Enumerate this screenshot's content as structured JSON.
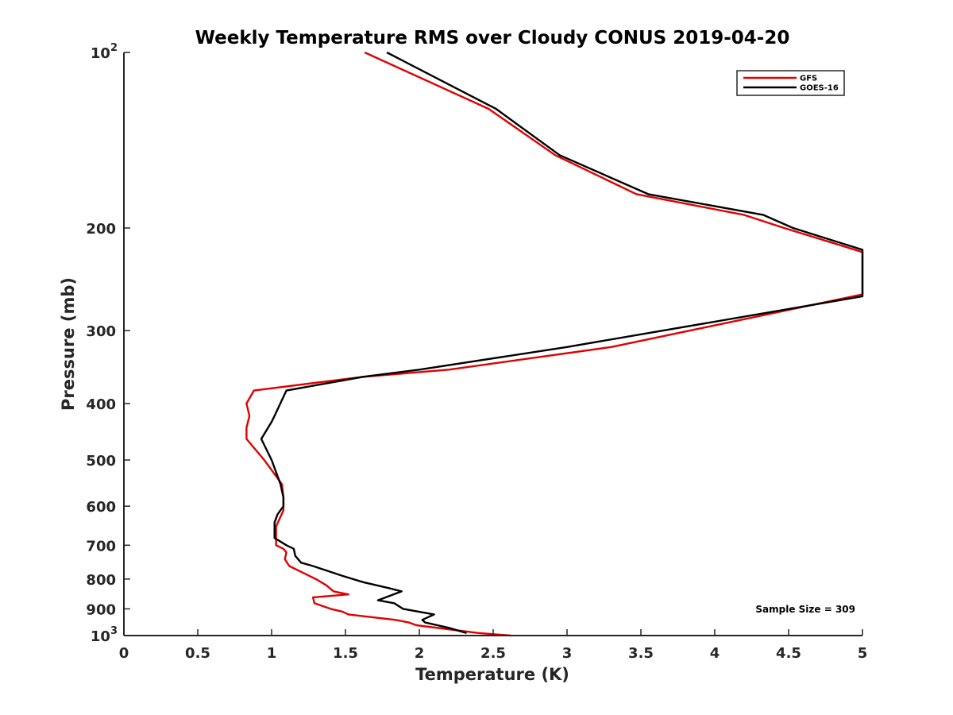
{
  "chart_data": {
    "type": "line",
    "title": "Weekly Temperature RMS over Cloudy CONUS 2019-04-20",
    "xlabel": "Temperature (K)",
    "ylabel": "Pressure (mb)",
    "xlim": [
      0,
      5
    ],
    "ylim": [
      100,
      1000
    ],
    "y_scale": "log",
    "y_reversed": true,
    "grid": false,
    "legend_position": "top-right",
    "x_ticks": [
      {
        "value": 0,
        "label": "0"
      },
      {
        "value": 0.5,
        "label": "0.5"
      },
      {
        "value": 1,
        "label": "1"
      },
      {
        "value": 1.5,
        "label": "1.5"
      },
      {
        "value": 2,
        "label": "2"
      },
      {
        "value": 2.5,
        "label": "2.5"
      },
      {
        "value": 3,
        "label": "3"
      },
      {
        "value": 3.5,
        "label": "3.5"
      },
      {
        "value": 4,
        "label": "4"
      },
      {
        "value": 4.5,
        "label": "4.5"
      },
      {
        "value": 5,
        "label": "5"
      }
    ],
    "y_ticks": [
      {
        "value": 100,
        "base": "10",
        "exp": "2"
      },
      {
        "value": 200,
        "label": "200"
      },
      {
        "value": 300,
        "label": "300"
      },
      {
        "value": 400,
        "label": "400"
      },
      {
        "value": 500,
        "label": "500"
      },
      {
        "value": 600,
        "label": "600"
      },
      {
        "value": 700,
        "label": "700"
      },
      {
        "value": 800,
        "label": "800"
      },
      {
        "value": 900,
        "label": "900"
      },
      {
        "value": 1000,
        "base": "10",
        "exp": "3"
      }
    ],
    "series": [
      {
        "name": "GFS",
        "color": "#e00000",
        "points": [
          [
            1.63,
            100
          ],
          [
            2.47,
            125
          ],
          [
            2.92,
            150
          ],
          [
            3.47,
            175
          ],
          [
            4.2,
            190
          ],
          [
            4.47,
            200
          ],
          [
            5.0,
            220
          ],
          [
            5.0,
            260
          ],
          [
            3.3,
            320
          ],
          [
            2.2,
            350
          ],
          [
            1.62,
            360
          ],
          [
            0.88,
            380
          ],
          [
            0.83,
            400
          ],
          [
            0.85,
            420
          ],
          [
            0.83,
            440
          ],
          [
            0.83,
            460
          ],
          [
            0.95,
            500
          ],
          [
            1.07,
            550
          ],
          [
            1.08,
            580
          ],
          [
            1.08,
            610
          ],
          [
            1.03,
            650
          ],
          [
            1.03,
            700
          ],
          [
            1.08,
            710
          ],
          [
            1.1,
            720
          ],
          [
            1.09,
            740
          ],
          [
            1.12,
            760
          ],
          [
            1.3,
            800
          ],
          [
            1.37,
            820
          ],
          [
            1.42,
            840
          ],
          [
            1.52,
            850
          ],
          [
            1.28,
            860
          ],
          [
            1.29,
            880
          ],
          [
            1.4,
            900
          ],
          [
            1.48,
            910
          ],
          [
            1.52,
            920
          ],
          [
            1.84,
            940
          ],
          [
            1.93,
            950
          ],
          [
            1.98,
            960
          ],
          [
            2.4,
            990
          ],
          [
            2.62,
            1000
          ]
        ]
      },
      {
        "name": "GOES-16",
        "color": "#000000",
        "points": [
          [
            1.78,
            100
          ],
          [
            2.52,
            125
          ],
          [
            2.95,
            150
          ],
          [
            3.55,
            175
          ],
          [
            4.33,
            190
          ],
          [
            4.53,
            200
          ],
          [
            5.0,
            218
          ],
          [
            5.0,
            262
          ],
          [
            3.0,
            320
          ],
          [
            2.0,
            350
          ],
          [
            1.62,
            360
          ],
          [
            1.1,
            380
          ],
          [
            1.02,
            420
          ],
          [
            1.0,
            430
          ],
          [
            0.93,
            460
          ],
          [
            1.0,
            500
          ],
          [
            1.06,
            550
          ],
          [
            1.08,
            580
          ],
          [
            1.08,
            600
          ],
          [
            1.04,
            620
          ],
          [
            1.02,
            640
          ],
          [
            1.02,
            680
          ],
          [
            1.1,
            700
          ],
          [
            1.15,
            710
          ],
          [
            1.16,
            730
          ],
          [
            1.2,
            750
          ],
          [
            1.28,
            760
          ],
          [
            1.48,
            790
          ],
          [
            1.62,
            810
          ],
          [
            1.8,
            830
          ],
          [
            1.88,
            840
          ],
          [
            1.72,
            870
          ],
          [
            1.83,
            880
          ],
          [
            1.86,
            890
          ],
          [
            1.89,
            900
          ],
          [
            2.1,
            920
          ],
          [
            2.02,
            940
          ],
          [
            2.04,
            950
          ],
          [
            2.2,
            970
          ],
          [
            2.32,
            990
          ]
        ]
      }
    ],
    "annotations": [
      {
        "text": "Sample Size = 309",
        "position": "bottom-right"
      }
    ]
  }
}
